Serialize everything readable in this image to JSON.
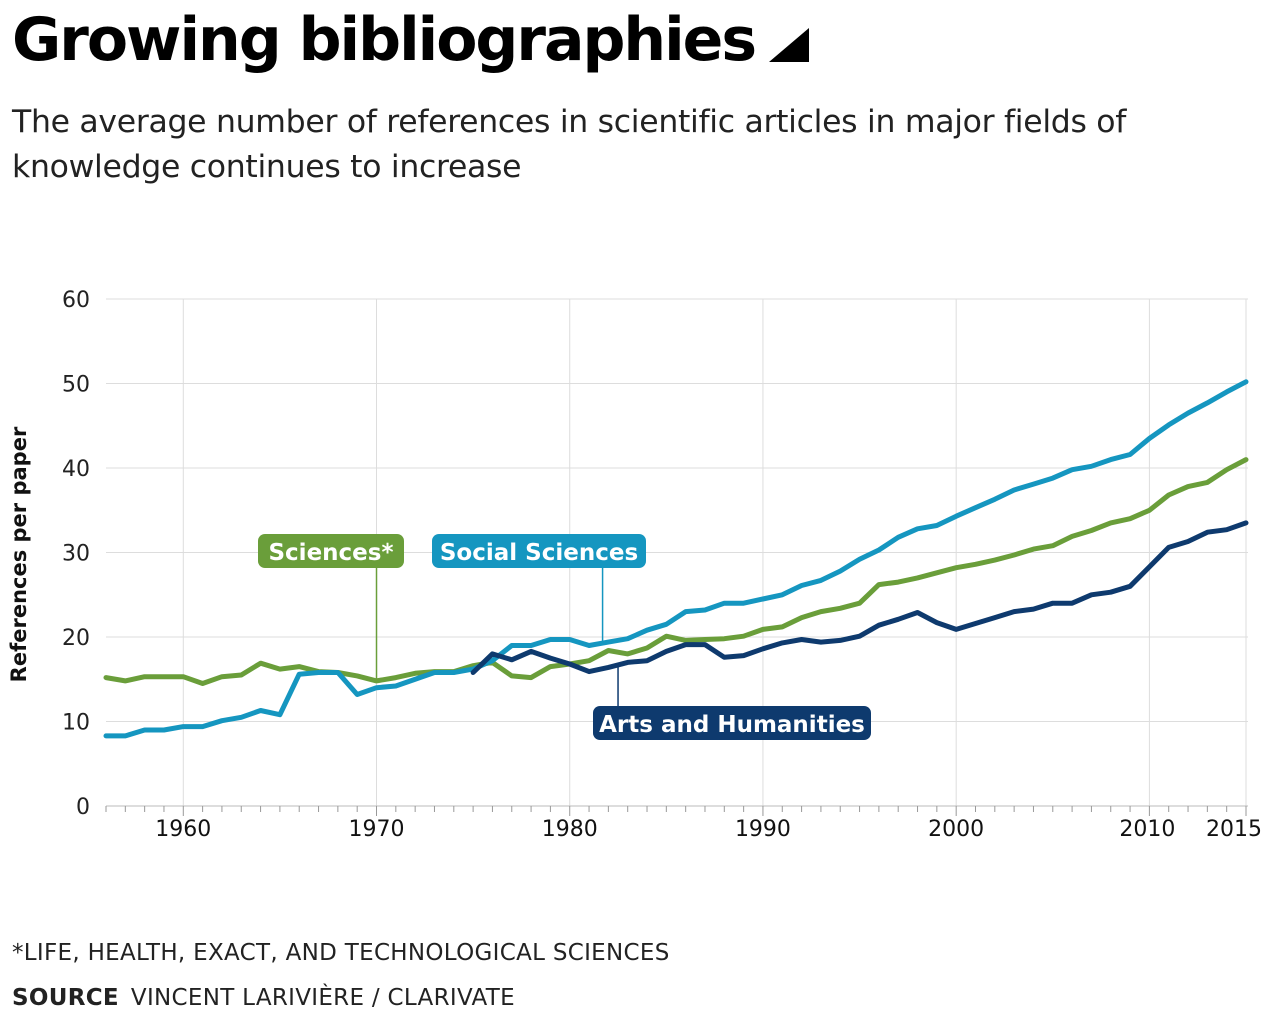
{
  "header": {
    "title": "Growing bibliographies",
    "subtitle": "The average number of references in scientific articles in major fields of knowledge continues to increase"
  },
  "footer": {
    "footnote": "*LIFE, HEALTH, EXACT, AND TECHNOLOGICAL SCIENCES",
    "source_label": "SOURCE",
    "source_text": "VINCENT LARIVIÈRE / CLARIVATE"
  },
  "chart_data": {
    "type": "line",
    "title": "Growing bibliographies",
    "xlabel": "",
    "ylabel": "References per paper",
    "xlim": [
      1956,
      2015
    ],
    "ylim": [
      0,
      60
    ],
    "yticks": [
      0,
      10,
      20,
      30,
      40,
      50,
      60
    ],
    "xticks": [
      1960,
      1970,
      1980,
      1990,
      2000,
      2010,
      2015
    ],
    "grid": true,
    "legend": "inline labels",
    "series": [
      {
        "name": "Sciences*",
        "color": "#6a9e3a",
        "label_color": "#ffffff",
        "callout_year": 1970,
        "x": [
          1956,
          1957,
          1958,
          1959,
          1960,
          1961,
          1962,
          1963,
          1964,
          1965,
          1966,
          1967,
          1968,
          1969,
          1970,
          1971,
          1972,
          1973,
          1974,
          1975,
          1976,
          1977,
          1978,
          1979,
          1980,
          1981,
          1982,
          1983,
          1984,
          1985,
          1986,
          1987,
          1988,
          1989,
          1990,
          1991,
          1992,
          1993,
          1994,
          1995,
          1996,
          1997,
          1998,
          1999,
          2000,
          2001,
          2002,
          2003,
          2004,
          2005,
          2006,
          2007,
          2008,
          2009,
          2010,
          2011,
          2012,
          2013,
          2014,
          2015
        ],
        "values": [
          15.2,
          14.8,
          15.3,
          15.3,
          15.3,
          14.5,
          15.3,
          15.5,
          16.9,
          16.2,
          16.5,
          15.9,
          15.8,
          15.4,
          14.8,
          15.2,
          15.7,
          15.9,
          15.9,
          16.6,
          17.0,
          15.4,
          15.2,
          16.5,
          16.8,
          17.2,
          18.4,
          18.0,
          18.7,
          20.1,
          19.6,
          19.7,
          19.8,
          20.1,
          20.9,
          21.2,
          22.3,
          23.0,
          23.4,
          24.0,
          26.2,
          26.5,
          27.0,
          27.6,
          28.2,
          28.6,
          29.1,
          29.7,
          30.4,
          30.8,
          31.9,
          32.6,
          33.5,
          34.0,
          35.0,
          36.8,
          37.8,
          38.3,
          39.8,
          41.0
        ]
      },
      {
        "name": "Social Sciences",
        "color": "#1596c0",
        "label_color": "#ffffff",
        "callout_year": 1981.7,
        "x": [
          1956,
          1957,
          1958,
          1959,
          1960,
          1961,
          1962,
          1963,
          1964,
          1965,
          1966,
          1967,
          1968,
          1969,
          1970,
          1971,
          1972,
          1973,
          1974,
          1975,
          1976,
          1977,
          1978,
          1979,
          1980,
          1981,
          1982,
          1983,
          1984,
          1985,
          1986,
          1987,
          1988,
          1989,
          1990,
          1991,
          1992,
          1993,
          1994,
          1995,
          1996,
          1997,
          1998,
          1999,
          2000,
          2001,
          2002,
          2003,
          2004,
          2005,
          2006,
          2007,
          2008,
          2009,
          2010,
          2011,
          2012,
          2013,
          2014,
          2015
        ],
        "values": [
          8.3,
          8.3,
          9.0,
          9.0,
          9.4,
          9.4,
          10.1,
          10.5,
          11.3,
          10.8,
          15.6,
          15.8,
          15.8,
          13.2,
          14.0,
          14.2,
          15.0,
          15.8,
          15.8,
          16.2,
          17.2,
          19.0,
          19.0,
          19.7,
          19.7,
          19.0,
          19.4,
          19.8,
          20.8,
          21.5,
          23.0,
          23.2,
          24.0,
          24.0,
          24.5,
          25.0,
          26.1,
          26.7,
          27.8,
          29.2,
          30.3,
          31.8,
          32.8,
          33.2,
          34.3,
          35.3,
          36.3,
          37.4,
          38.1,
          38.8,
          39.8,
          40.2,
          41.0,
          41.6,
          43.5,
          45.1,
          46.5,
          47.7,
          49.0,
          50.2
        ]
      },
      {
        "name": "Arts and Humanities",
        "color": "#0e3a6e",
        "label_color": "#ffffff",
        "callout_year": 1982.5,
        "x": [
          1975,
          1976,
          1977,
          1978,
          1979,
          1980,
          1981,
          1982,
          1983,
          1984,
          1985,
          1986,
          1987,
          1988,
          1989,
          1990,
          1991,
          1992,
          1993,
          1994,
          1995,
          1996,
          1997,
          1998,
          1999,
          2000,
          2001,
          2002,
          2003,
          2004,
          2005,
          2006,
          2007,
          2008,
          2009,
          2010,
          2011,
          2012,
          2013,
          2014,
          2015
        ],
        "values": [
          15.8,
          18.0,
          17.3,
          18.3,
          17.5,
          16.8,
          15.9,
          16.4,
          17.0,
          17.2,
          18.3,
          19.1,
          19.1,
          17.6,
          17.8,
          18.6,
          19.3,
          19.7,
          19.4,
          19.6,
          20.1,
          21.4,
          22.1,
          22.9,
          21.7,
          20.9,
          21.6,
          22.3,
          23.0,
          23.3,
          24.0,
          24.0,
          25.0,
          25.3,
          26.0,
          28.3,
          30.6,
          31.3,
          32.4,
          32.7,
          33.5
        ]
      }
    ]
  }
}
